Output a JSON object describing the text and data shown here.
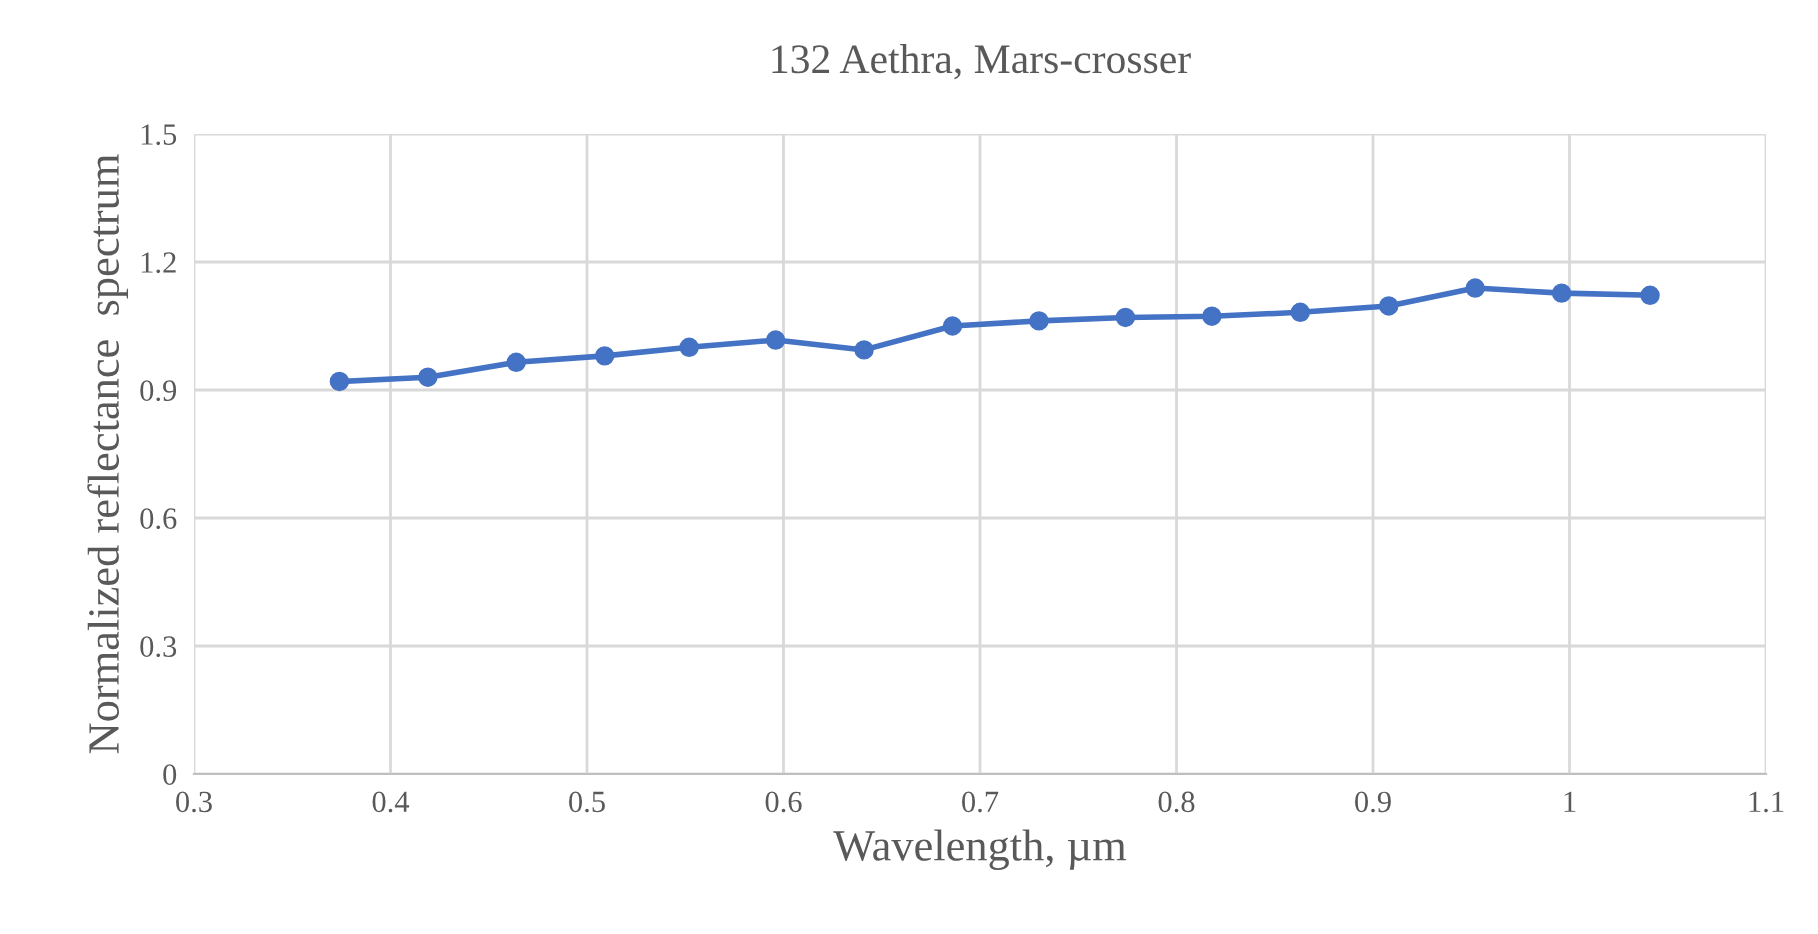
{
  "chart_data": {
    "type": "line",
    "title": "132 Aethra, Mars-crosser",
    "xlabel": "Wavelength, µm",
    "ylabel": "Normalized reflectance  spectrum",
    "x": [
      0.374,
      0.419,
      0.464,
      0.509,
      0.552,
      0.596,
      0.641,
      0.686,
      0.73,
      0.774,
      0.818,
      0.863,
      0.908,
      0.952,
      0.996,
      1.041
    ],
    "series": [
      {
        "color": "#4472c4",
        "values": [
          0.92,
          0.93,
          0.965,
          0.98,
          1.0,
          1.017,
          0.994,
          1.05,
          1.062,
          1.07,
          1.073,
          1.082,
          1.097,
          1.139,
          1.127,
          1.122
        ]
      }
    ],
    "xlim": [
      0.3,
      1.1
    ],
    "xticks": [
      0.3,
      0.4,
      0.5,
      0.6,
      0.7,
      0.8,
      0.9,
      1,
      1.1
    ],
    "ylim": [
      0,
      1.5
    ],
    "yticks": [
      0,
      0.3,
      0.6,
      0.9,
      1.2,
      1.5
    ],
    "grid": true,
    "marker": "circle",
    "line_style": "solid"
  }
}
